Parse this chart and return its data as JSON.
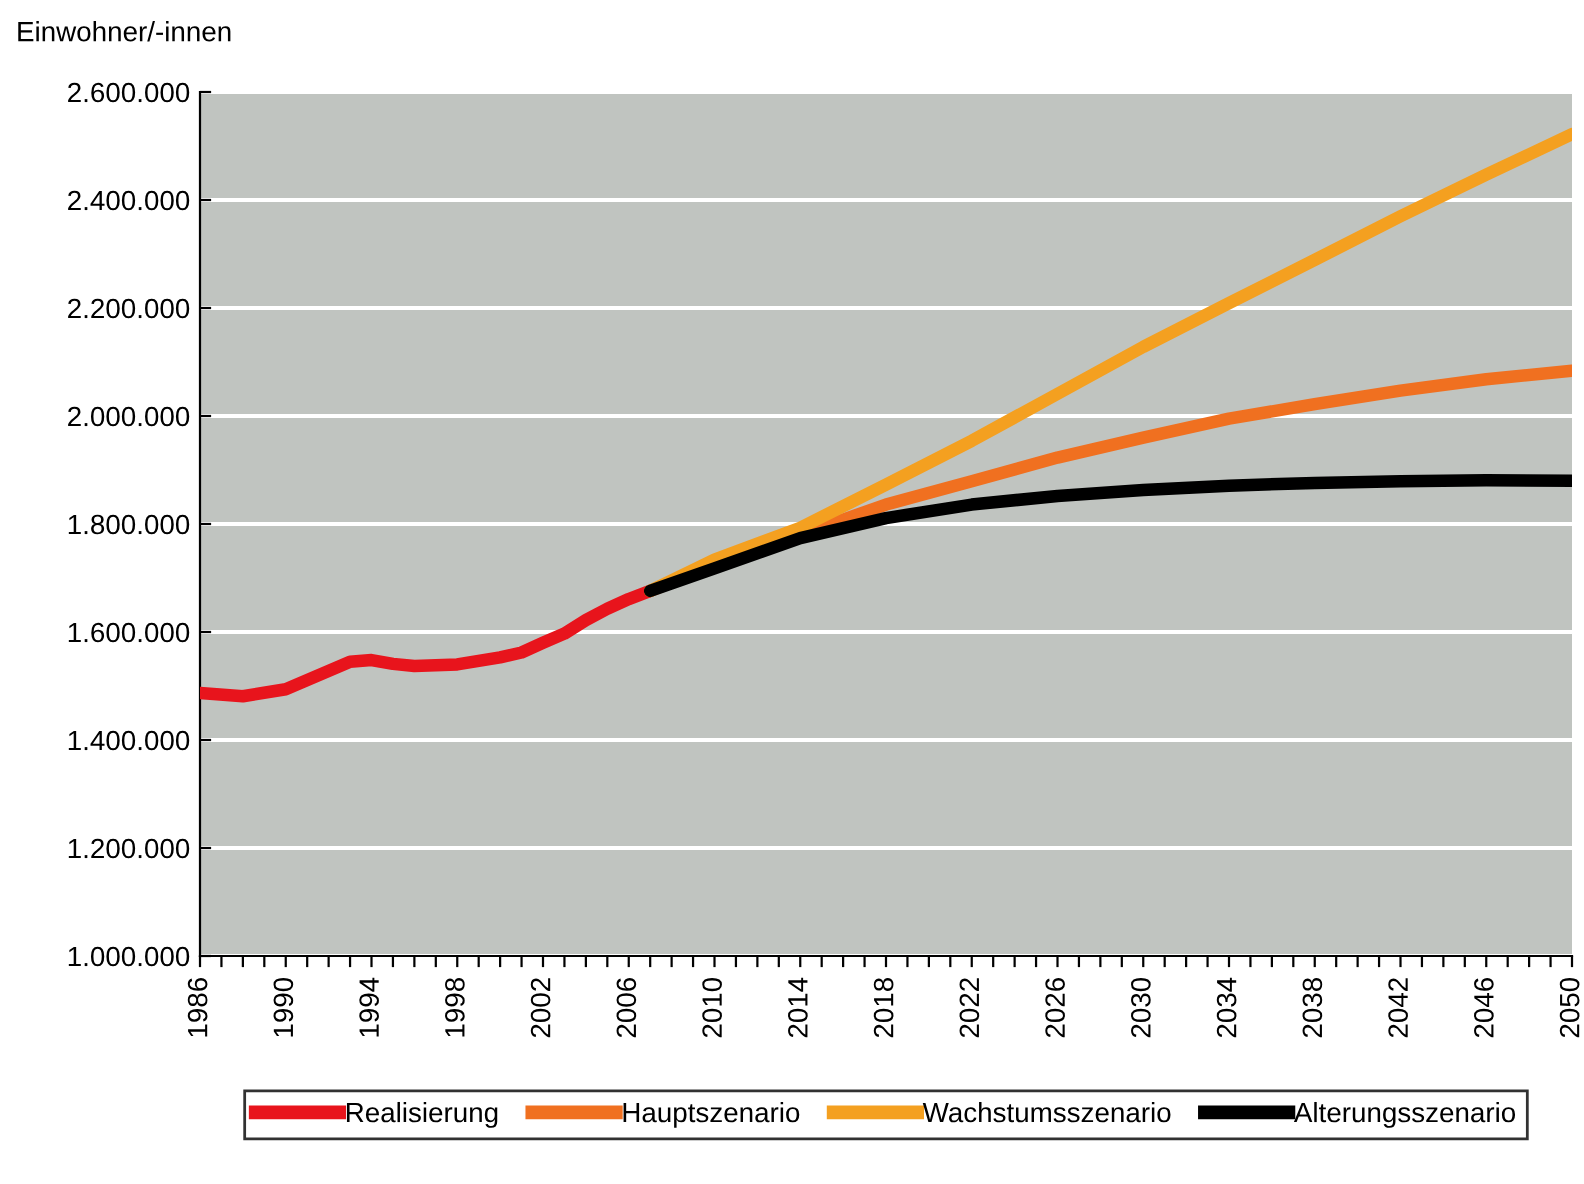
{
  "chart_data": {
    "type": "line",
    "ylabel": "Einwohner/-innen",
    "series": [
      {
        "name": "Realisierung",
        "color": "#e8141c",
        "x": [
          1986,
          1988,
          1990,
          1993,
          1994,
          1995,
          1996,
          1998,
          2000,
          2001,
          2002,
          2003,
          2004,
          2005,
          2006,
          2007
        ],
        "values": [
          1487000,
          1481000,
          1494000,
          1545000,
          1548000,
          1541000,
          1537000,
          1540000,
          1553000,
          1562000,
          1580000,
          1597000,
          1622000,
          1643000,
          1661000,
          1676000
        ]
      },
      {
        "name": "Hauptszenario",
        "color": "#f07020",
        "x": [
          2007,
          2010,
          2014,
          2018,
          2022,
          2026,
          2030,
          2034,
          2038,
          2042,
          2046,
          2050
        ],
        "values": [
          1676000,
          1725000,
          1780000,
          1836000,
          1879000,
          1923000,
          1960000,
          1995000,
          2022000,
          2047000,
          2068000,
          2084000
        ]
      },
      {
        "name": "Wachstumsszenario",
        "color": "#f4a020",
        "x": [
          2007,
          2010,
          2014,
          2018,
          2022,
          2026,
          2030,
          2034,
          2038,
          2042,
          2046,
          2050
        ],
        "values": [
          1676000,
          1734000,
          1793000,
          1873000,
          1954000,
          2041000,
          2128000,
          2209000,
          2289000,
          2370000,
          2447000,
          2522000
        ]
      },
      {
        "name": "Alterungsszenario",
        "color": "#000000",
        "x": [
          2007,
          2010,
          2014,
          2018,
          2022,
          2026,
          2030,
          2034,
          2038,
          2042,
          2046,
          2050
        ],
        "values": [
          1676000,
          1718000,
          1774000,
          1811000,
          1836000,
          1852000,
          1863000,
          1871000,
          1876000,
          1879000,
          1881000,
          1880000
        ]
      }
    ],
    "xlim": [
      1986,
      2050
    ],
    "xticks": [
      1986,
      {
        "value": 1987,
        "label": null
      },
      {
        "value": 1988,
        "label": null
      },
      {
        "value": 1989,
        "label": null
      },
      1990,
      {
        "value": 1991,
        "label": null
      },
      {
        "value": 1992,
        "label": null
      },
      {
        "value": 1993,
        "label": null
      },
      1994,
      {
        "value": 1995,
        "label": null
      },
      {
        "value": 1996,
        "label": null
      },
      {
        "value": 1997,
        "label": null
      },
      1998,
      {
        "value": 1999,
        "label": null
      },
      {
        "value": 2000,
        "label": null
      },
      {
        "value": 2001,
        "label": null
      },
      2002,
      {
        "value": 2003,
        "label": null
      },
      {
        "value": 2004,
        "label": null
      },
      {
        "value": 2005,
        "label": null
      },
      2006,
      {
        "value": 2007,
        "label": null
      },
      {
        "value": 2008,
        "label": null
      },
      {
        "value": 2009,
        "label": null
      },
      2010,
      {
        "value": 2011,
        "label": null
      },
      {
        "value": 2012,
        "label": null
      },
      {
        "value": 2013,
        "label": null
      },
      2014,
      {
        "value": 2015,
        "label": null
      },
      {
        "value": 2016,
        "label": null
      },
      {
        "value": 2017,
        "label": null
      },
      2018,
      {
        "value": 2019,
        "label": null
      },
      {
        "value": 2020,
        "label": null
      },
      {
        "value": 2021,
        "label": null
      },
      2022,
      {
        "value": 2023,
        "label": null
      },
      {
        "value": 2024,
        "label": null
      },
      {
        "value": 2025,
        "label": null
      },
      2026,
      {
        "value": 2027,
        "label": null
      },
      {
        "value": 2028,
        "label": null
      },
      {
        "value": 2029,
        "label": null
      },
      2030,
      {
        "value": 2031,
        "label": null
      },
      {
        "value": 2032,
        "label": null
      },
      {
        "value": 2033,
        "label": null
      },
      2034,
      {
        "value": 2035,
        "label": null
      },
      {
        "value": 2036,
        "label": null
      },
      {
        "value": 2037,
        "label": null
      },
      2038,
      {
        "value": 2039,
        "label": null
      },
      {
        "value": 2040,
        "label": null
      },
      {
        "value": 2041,
        "label": null
      },
      2042,
      {
        "value": 2043,
        "label": null
      },
      {
        "value": 2044,
        "label": null
      },
      {
        "value": 2045,
        "label": null
      },
      2046,
      {
        "value": 2047,
        "label": null
      },
      {
        "value": 2048,
        "label": null
      },
      {
        "value": 2049,
        "label": null
      },
      2050
    ],
    "ylim": [
      1000000,
      2600000
    ],
    "yticks": [
      {
        "value": 1000000,
        "label": "1.000.000"
      },
      {
        "value": 1200000,
        "label": "1.200.000"
      },
      {
        "value": 1400000,
        "label": "1.400.000"
      },
      {
        "value": 1600000,
        "label": "1.600.000"
      },
      {
        "value": 1800000,
        "label": "1.800.000"
      },
      {
        "value": 2000000,
        "label": "2.000.000"
      },
      {
        "value": 2200000,
        "label": "2.200.000"
      },
      {
        "value": 2400000,
        "label": "2.400.000"
      },
      {
        "value": 2600000,
        "label": "2.600.000"
      }
    ],
    "grid": "y",
    "legend": "bottom",
    "marker": "none",
    "line_style": "solid"
  }
}
